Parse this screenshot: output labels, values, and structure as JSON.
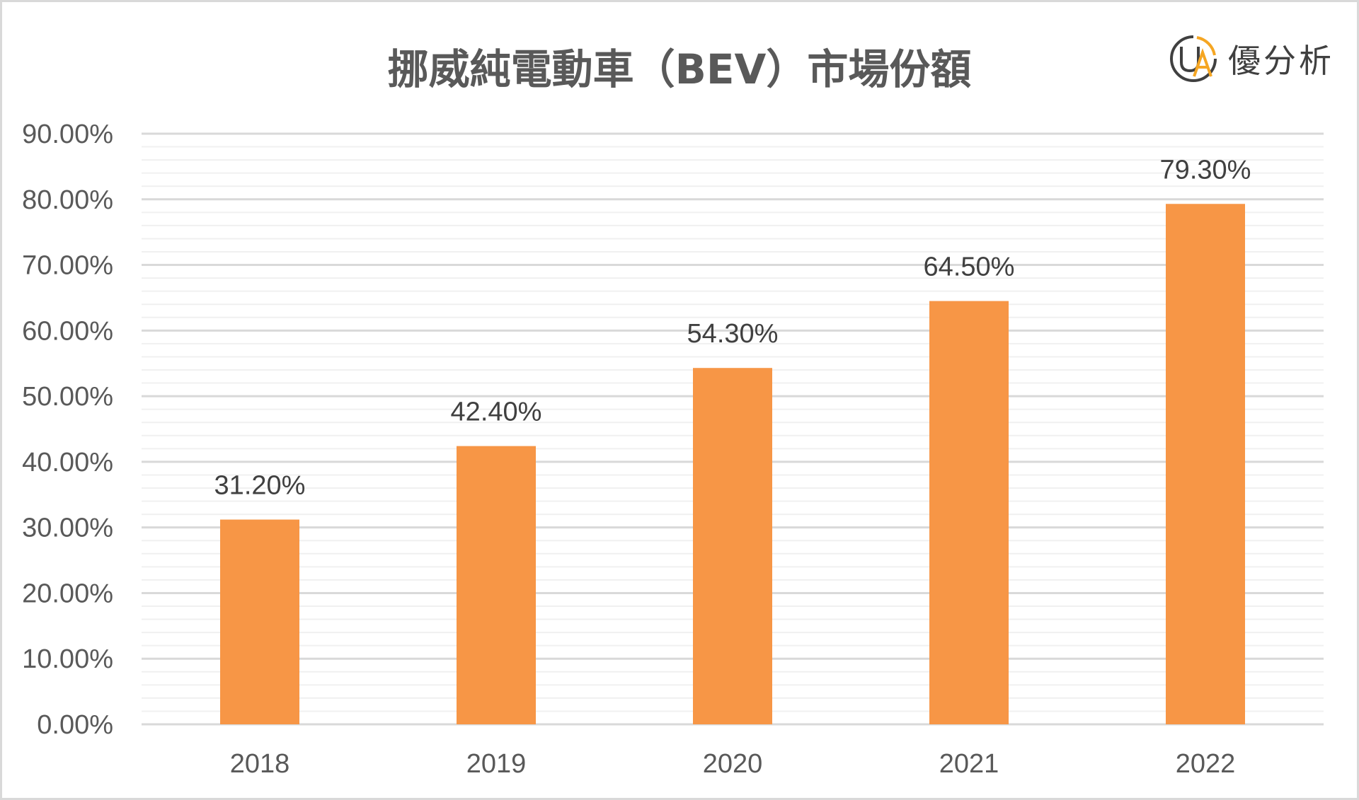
{
  "chart_data": {
    "type": "bar",
    "title": "挪威純電動車（BEV）市場份額",
    "categories": [
      "2018",
      "2019",
      "2020",
      "2021",
      "2022"
    ],
    "values": [
      31.2,
      42.4,
      54.3,
      64.5,
      79.3
    ],
    "value_labels": [
      "31.20%",
      "42.40%",
      "54.30%",
      "64.50%",
      "79.30%"
    ],
    "ylim": [
      0,
      90
    ],
    "yticks": [
      0,
      10,
      20,
      30,
      40,
      50,
      60,
      70,
      80,
      90
    ],
    "ytick_labels": [
      "0.00%",
      "10.00%",
      "20.00%",
      "30.00%",
      "40.00%",
      "50.00%",
      "60.00%",
      "70.00%",
      "80.00%",
      "90.00%"
    ],
    "minor_grid_step": 2,
    "grid": true,
    "legend": false,
    "xlabel": "",
    "ylabel": "",
    "bar_color": "#F79646",
    "major_grid_color": "#d9d9d9",
    "minor_grid_color": "#f0f0f0"
  },
  "logo": {
    "text": "優分析",
    "mark_letters": "UA",
    "icon": "ua-logo-icon",
    "colors": {
      "ring": "#404040",
      "accent": "#F5A623"
    }
  }
}
